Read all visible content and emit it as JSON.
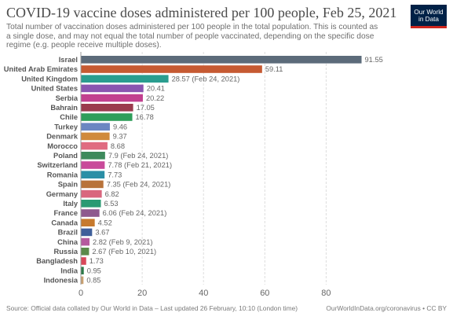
{
  "header": {
    "title": "COVID-19 vaccine doses administered per 100 people, Feb 25, 2021",
    "subtitle": "Total number of vaccination doses administered per 100 people in the total population. This is counted as a single dose, and may not equal the total number of people vaccinated, depending on the specific dose regime (e.g. people receive multiple doses).",
    "logo_line1": "Our World",
    "logo_line2": "in Data"
  },
  "footer": {
    "source": "Source: Official data collated by Our World in Data – Last updated 26 February, 10:10 (London time)",
    "credit": "OurWorldInData.org/coronavirus • CC BY"
  },
  "colors": {
    "logo_bg": "#002147",
    "logo_accent": "#ce261e",
    "grid": "#dddddd"
  },
  "chart_data": {
    "type": "bar",
    "orientation": "horizontal",
    "xlim": [
      0,
      95
    ],
    "xticks": [
      0,
      20,
      40,
      60,
      80
    ],
    "grid": true,
    "bars": [
      {
        "label": "Israel",
        "value": 91.55,
        "value_label": "91.55",
        "color": "#5c6b7a"
      },
      {
        "label": "United Arab Emirates",
        "value": 59.11,
        "value_label": "59.11",
        "color": "#c65a32"
      },
      {
        "label": "United Kingdom",
        "value": 28.57,
        "value_label": "28.57 (Feb 24, 2021)",
        "color": "#2a9d8f"
      },
      {
        "label": "United States",
        "value": 20.41,
        "value_label": "20.41",
        "color": "#8a55b0"
      },
      {
        "label": "Serbia",
        "value": 20.22,
        "value_label": "20.22",
        "color": "#c2408f"
      },
      {
        "label": "Bahrain",
        "value": 17.05,
        "value_label": "17.05",
        "color": "#9b3a4d"
      },
      {
        "label": "Chile",
        "value": 16.78,
        "value_label": "16.78",
        "color": "#2f9e5a"
      },
      {
        "label": "Turkey",
        "value": 9.46,
        "value_label": "9.46",
        "color": "#6b86c2"
      },
      {
        "label": "Denmark",
        "value": 9.37,
        "value_label": "9.37",
        "color": "#d08a3c"
      },
      {
        "label": "Morocco",
        "value": 8.68,
        "value_label": "8.68",
        "color": "#e06b80"
      },
      {
        "label": "Poland",
        "value": 7.9,
        "value_label": "7.9 (Feb 24, 2021)",
        "color": "#3e8a5c"
      },
      {
        "label": "Switzerland",
        "value": 7.78,
        "value_label": "7.78 (Feb 21, 2021)",
        "color": "#c94a9a"
      },
      {
        "label": "Romania",
        "value": 7.73,
        "value_label": "7.73",
        "color": "#2b8fa6"
      },
      {
        "label": "Spain",
        "value": 7.35,
        "value_label": "7.35 (Feb 24, 2021)",
        "color": "#b8733a"
      },
      {
        "label": "Germany",
        "value": 6.82,
        "value_label": "6.82",
        "color": "#d9677e"
      },
      {
        "label": "Italy",
        "value": 6.53,
        "value_label": "6.53",
        "color": "#2a9a73"
      },
      {
        "label": "France",
        "value": 6.06,
        "value_label": "6.06 (Feb 24, 2021)",
        "color": "#8e5a8e"
      },
      {
        "label": "Canada",
        "value": 4.52,
        "value_label": "4.52",
        "color": "#c77a2e"
      },
      {
        "label": "Brazil",
        "value": 3.67,
        "value_label": "3.67",
        "color": "#3f5f9a"
      },
      {
        "label": "China",
        "value": 2.82,
        "value_label": "2.82 (Feb 9, 2021)",
        "color": "#b55a9e"
      },
      {
        "label": "Russia",
        "value": 2.67,
        "value_label": "2.67 (Feb 10, 2021)",
        "color": "#5a8a4a"
      },
      {
        "label": "Bangladesh",
        "value": 1.73,
        "value_label": "1.73",
        "color": "#d9485a"
      },
      {
        "label": "India",
        "value": 0.95,
        "value_label": "0.95",
        "color": "#2d7a4a"
      },
      {
        "label": "Indonesia",
        "value": 0.85,
        "value_label": "0.85",
        "color": "#c9a070"
      }
    ]
  }
}
